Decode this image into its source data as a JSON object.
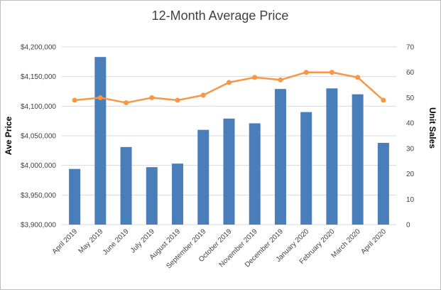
{
  "chart_data": {
    "type": "bar+line",
    "title": "12-Month Average Price",
    "categories": [
      "April 2019",
      "May 2019",
      "June 2019",
      "July 2019",
      "August 2019",
      "September 2019",
      "October 2019",
      "November 2019",
      "December 2019",
      "January 2020",
      "February 2020",
      "March 2020",
      "April 2020"
    ],
    "series": [
      {
        "name": "",
        "type": "bar",
        "axis": "left",
        "color": "#4a7ebb",
        "values": [
          3994000,
          4183000,
          4031000,
          3997000,
          4003000,
          4060000,
          4079000,
          4071000,
          4129000,
          4090000,
          4130000,
          4120000,
          4038000
        ]
      },
      {
        "name": "",
        "type": "line",
        "axis": "right",
        "color": "#f79646",
        "values": [
          49,
          50,
          48,
          50,
          49,
          51,
          56,
          58,
          57,
          60,
          60,
          58,
          49
        ]
      }
    ],
    "ylabel": "Ave Price",
    "y2label": "Unit Sales",
    "ylim": [
      3900000,
      4200000
    ],
    "y2lim": [
      0,
      70
    ],
    "ytick_labels": [
      "$3,900,000",
      "$3,950,000",
      "$4,000,000",
      "$4,050,000",
      "$4,100,000",
      "$4,150,000",
      "$4,200,000"
    ],
    "y2tick_labels": [
      "0",
      "10",
      "20",
      "30",
      "40",
      "50",
      "60",
      "70"
    ],
    "grid": true,
    "legend": "none"
  }
}
